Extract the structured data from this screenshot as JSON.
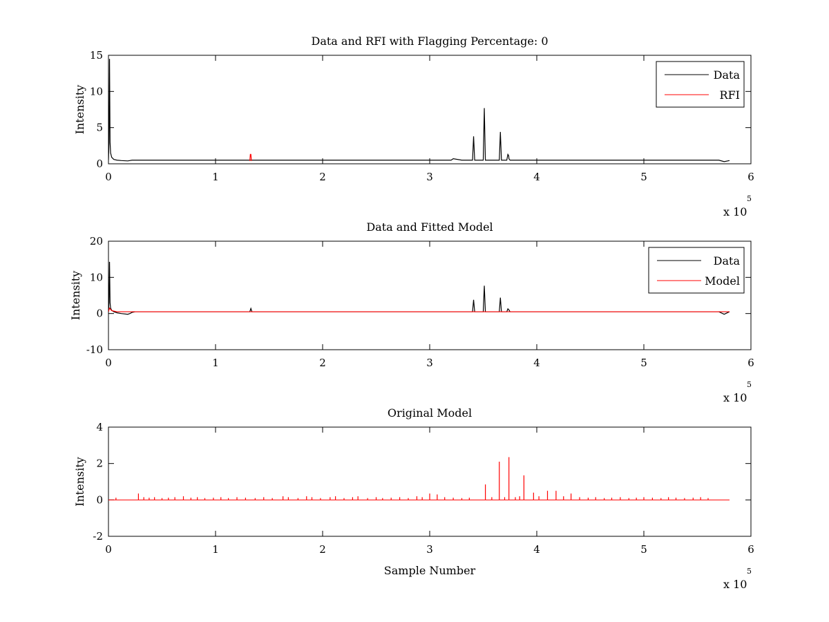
{
  "chart_data": [
    {
      "type": "line",
      "title": "Data and RFI with Flagging Percentage: 0",
      "xlabel": "",
      "ylabel": "Intensity",
      "xlim": [
        0,
        600000
      ],
      "ylim": [
        0,
        15
      ],
      "xticks": [
        0,
        100000,
        200000,
        300000,
        400000,
        500000,
        600000
      ],
      "xtick_labels": [
        "0",
        "1",
        "2",
        "3",
        "4",
        "5",
        "6"
      ],
      "yticks": [
        0,
        5,
        10,
        15
      ],
      "ytick_labels": [
        "0",
        "5",
        "10",
        "15"
      ],
      "x_exponent": {
        "base": "x 10",
        "power": "5"
      },
      "grid": false,
      "legend_position": "top-right",
      "series": [
        {
          "name": "Data",
          "color": "#000000",
          "x": [
            0,
            500,
            1000,
            1500,
            2000,
            3000,
            5000,
            8000,
            12000,
            18000,
            20000,
            22000,
            35000,
            60000,
            100000,
            130000,
            133000,
            180000,
            250000,
            320000,
            322000,
            330000,
            338000,
            340000,
            341000,
            342000,
            343000,
            350000,
            351000,
            352000,
            353000,
            360000,
            365000,
            366000,
            367000,
            368000,
            372000,
            373000,
            373800,
            374000,
            375000,
            390000,
            450000,
            550000,
            570000,
            575000,
            580000
          ],
          "values": [
            0.5,
            2.8,
            14.5,
            3.0,
            1.5,
            0.9,
            0.6,
            0.5,
            0.45,
            0.4,
            0.45,
            0.5,
            0.5,
            0.5,
            0.5,
            0.5,
            0.5,
            0.5,
            0.5,
            0.5,
            0.7,
            0.5,
            0.5,
            0.5,
            3.8,
            0.5,
            0.5,
            0.5,
            7.7,
            0.5,
            0.5,
            0.5,
            0.5,
            4.4,
            0.5,
            0.5,
            0.5,
            1.3,
            1.1,
            0.7,
            0.5,
            0.5,
            0.5,
            0.5,
            0.5,
            0.3,
            0.45
          ]
        },
        {
          "name": "RFI",
          "color": "#ff0000",
          "x": [
            132000,
            132500,
            133000,
            133500
          ],
          "values": [
            0.4,
            1.3,
            1.3,
            0.4
          ]
        }
      ]
    },
    {
      "type": "line",
      "title": "Data and Fitted Model",
      "xlabel": "",
      "ylabel": "Intensity",
      "xlim": [
        0,
        600000
      ],
      "ylim": [
        -10,
        20
      ],
      "xticks": [
        0,
        100000,
        200000,
        300000,
        400000,
        500000,
        600000
      ],
      "xtick_labels": [
        "0",
        "1",
        "2",
        "3",
        "4",
        "5",
        "6"
      ],
      "yticks": [
        -10,
        0,
        10,
        20
      ],
      "ytick_labels": [
        "-10",
        "0",
        "10",
        "20"
      ],
      "x_exponent": {
        "base": "x 10",
        "power": "5"
      },
      "grid": false,
      "legend_position": "top-right",
      "series": [
        {
          "name": "Data",
          "color": "#000000",
          "x": [
            0,
            500,
            1000,
            1500,
            2000,
            3000,
            5000,
            8000,
            12000,
            18000,
            20000,
            22000,
            25000,
            60000,
            132000,
            133000,
            134000,
            250000,
            340000,
            341000,
            342000,
            350000,
            351000,
            352000,
            365000,
            366000,
            367000,
            372000,
            373000,
            374000,
            375000,
            450000,
            570000,
            575000,
            580000
          ],
          "values": [
            0.5,
            3.0,
            14.3,
            3.0,
            1.5,
            0.9,
            0.5,
            0.2,
            0.0,
            -0.2,
            0.0,
            0.3,
            0.5,
            0.5,
            0.5,
            1.4,
            0.5,
            0.5,
            0.5,
            3.8,
            0.5,
            0.5,
            7.7,
            0.5,
            0.5,
            4.4,
            0.5,
            0.5,
            1.3,
            1.0,
            0.5,
            0.5,
            0.5,
            -0.2,
            0.5
          ]
        },
        {
          "name": "Model",
          "color": "#ff0000",
          "x": [
            0,
            1000,
            3000,
            8000,
            20000,
            25000,
            100000,
            300000,
            500000,
            580000
          ],
          "values": [
            0.5,
            1.5,
            0.8,
            0.5,
            0.5,
            0.5,
            0.5,
            0.5,
            0.5,
            0.5
          ]
        }
      ]
    },
    {
      "type": "line",
      "title": "Original Model",
      "xlabel": "Sample Number",
      "ylabel": "Intensity",
      "xlim": [
        0,
        600000
      ],
      "ylim": [
        -2,
        4
      ],
      "xticks": [
        0,
        100000,
        200000,
        300000,
        400000,
        500000,
        600000
      ],
      "xtick_labels": [
        "0",
        "1",
        "2",
        "3",
        "4",
        "5",
        "6"
      ],
      "yticks": [
        -2,
        0,
        2,
        4
      ],
      "ytick_labels": [
        "-2",
        "0",
        "2",
        "4"
      ],
      "x_exponent": {
        "base": "x 10",
        "power": "5"
      },
      "grid": false,
      "legend_position": "none",
      "series": [
        {
          "color": "#ff0000",
          "baseline": 0,
          "x_end": 580000,
          "spikes_x": [
            7000,
            28000,
            33000,
            38000,
            43000,
            50000,
            56000,
            62000,
            70000,
            77000,
            83000,
            90000,
            98000,
            105000,
            112000,
            120000,
            128000,
            137000,
            145000,
            153000,
            163000,
            168000,
            177000,
            185000,
            190000,
            198000,
            207000,
            212000,
            220000,
            228000,
            233000,
            242000,
            250000,
            256000,
            264000,
            272000,
            280000,
            288000,
            293000,
            300000,
            307000,
            314000,
            322000,
            330000,
            337000,
            352000,
            358000,
            365000,
            370000,
            374000,
            380000,
            384000,
            388000,
            397000,
            402000,
            410000,
            418000,
            425000,
            432000,
            440000,
            448000,
            455000,
            463000,
            470000,
            478000,
            486000,
            493000,
            500000,
            508000,
            516000,
            523000,
            530000,
            538000,
            546000,
            553000,
            560000
          ],
          "spikes_y": [
            0.12,
            0.35,
            0.15,
            0.12,
            0.15,
            0.1,
            0.12,
            0.15,
            0.2,
            0.12,
            0.15,
            0.1,
            0.12,
            0.15,
            0.1,
            0.15,
            0.12,
            0.1,
            0.15,
            0.1,
            0.2,
            0.15,
            0.1,
            0.2,
            0.15,
            0.1,
            0.15,
            0.2,
            0.1,
            0.15,
            0.2,
            0.1,
            0.15,
            0.1,
            0.12,
            0.15,
            0.1,
            0.2,
            0.15,
            0.35,
            0.3,
            0.15,
            0.12,
            0.1,
            0.12,
            0.85,
            0.15,
            2.1,
            0.15,
            2.35,
            0.15,
            0.2,
            1.35,
            0.4,
            0.2,
            0.5,
            0.5,
            0.2,
            0.35,
            0.15,
            0.12,
            0.15,
            0.1,
            0.12,
            0.15,
            0.1,
            0.12,
            0.15,
            0.12,
            0.1,
            0.15,
            0.12,
            0.1,
            0.12,
            0.15,
            0.1
          ]
        }
      ]
    }
  ]
}
